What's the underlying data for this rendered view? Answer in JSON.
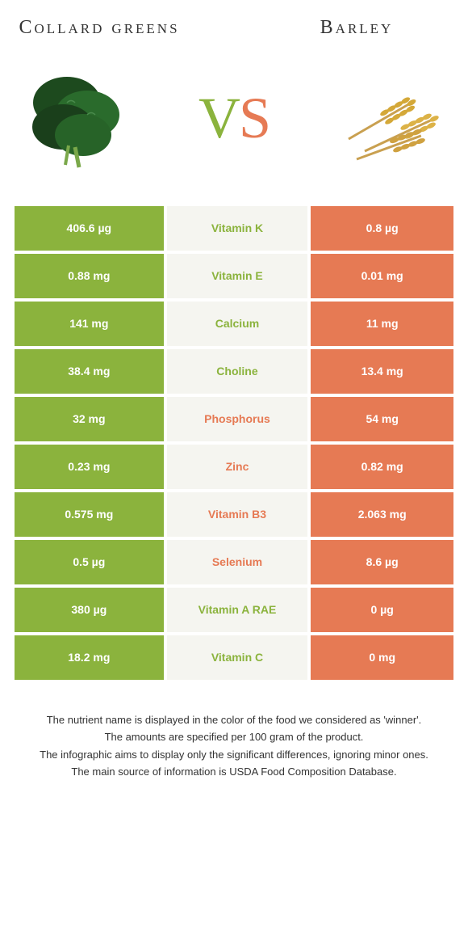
{
  "foods": {
    "left": {
      "name": "Collard greens",
      "color": "#8bb33d"
    },
    "right": {
      "name": "Barley",
      "color": "#e67a54"
    }
  },
  "vs": {
    "v": "V",
    "s": "S"
  },
  "rows": [
    {
      "left": "406.6 µg",
      "nutrient": "Vitamin K",
      "right": "0.8 µg",
      "winner": "left"
    },
    {
      "left": "0.88 mg",
      "nutrient": "Vitamin E",
      "right": "0.01 mg",
      "winner": "left"
    },
    {
      "left": "141 mg",
      "nutrient": "Calcium",
      "right": "11 mg",
      "winner": "left"
    },
    {
      "left": "38.4 mg",
      "nutrient": "Choline",
      "right": "13.4 mg",
      "winner": "left"
    },
    {
      "left": "32 mg",
      "nutrient": "Phosphorus",
      "right": "54 mg",
      "winner": "right"
    },
    {
      "left": "0.23 mg",
      "nutrient": "Zinc",
      "right": "0.82 mg",
      "winner": "right"
    },
    {
      "left": "0.575 mg",
      "nutrient": "Vitamin B3",
      "right": "2.063 mg",
      "winner": "right"
    },
    {
      "left": "0.5 µg",
      "nutrient": "Selenium",
      "right": "8.6 µg",
      "winner": "right"
    },
    {
      "left": "380 µg",
      "nutrient": "Vitamin A RAE",
      "right": "0 µg",
      "winner": "left"
    },
    {
      "left": "18.2 mg",
      "nutrient": "Vitamin C",
      "right": "0 mg",
      "winner": "left"
    }
  ],
  "footnotes": [
    "The nutrient name is displayed in the color of the food we considered as 'winner'.",
    "The amounts are specified per 100 gram of the product.",
    "The infographic aims to display only the significant differences, ignoring minor ones.",
    "The main source of information is USDA Food Composition Database."
  ]
}
